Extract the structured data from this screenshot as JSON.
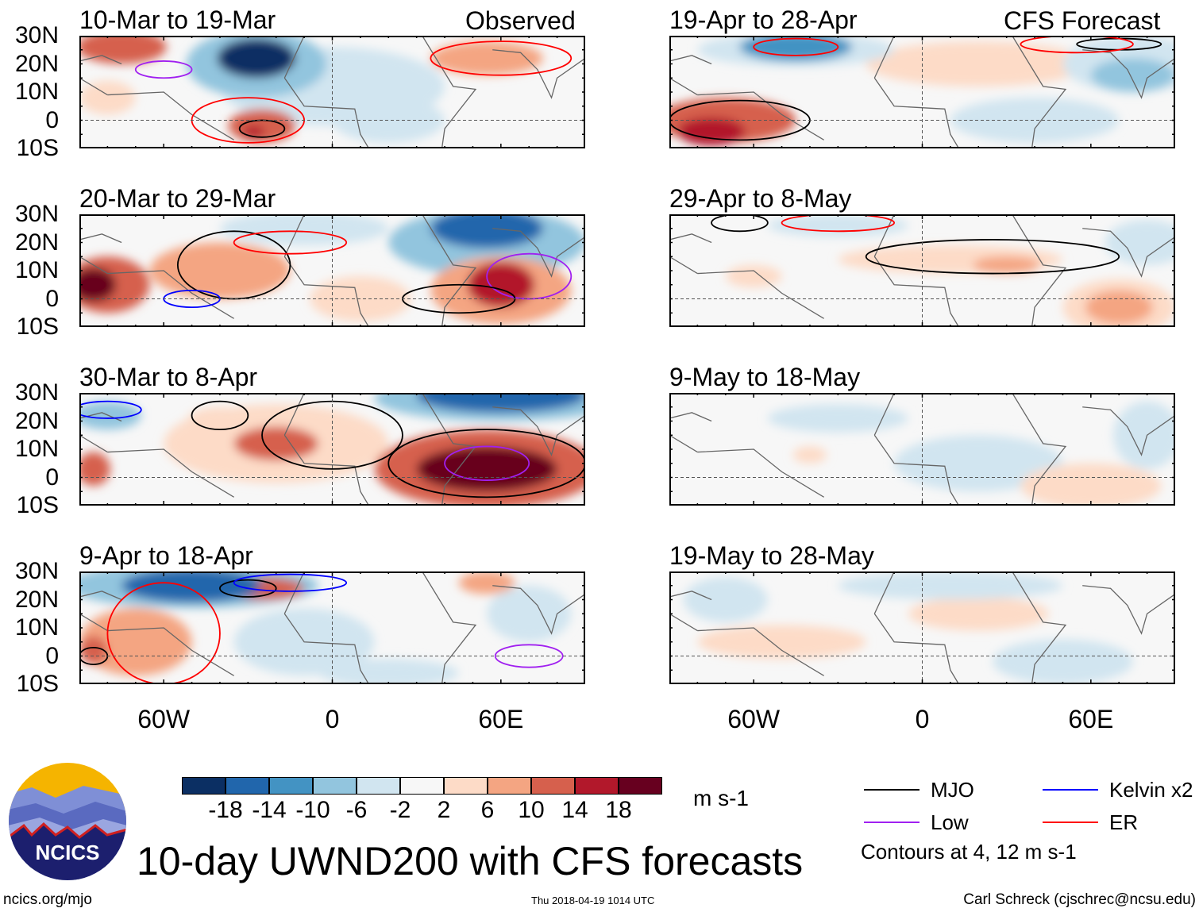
{
  "header": {
    "left_label": "Observed",
    "right_label": "CFS Forecast"
  },
  "lat_labels": [
    "30N",
    "20N",
    "10N",
    "0",
    "10S"
  ],
  "lon_labels": [
    "60W",
    "0",
    "60E"
  ],
  "colorbar": {
    "labels": [
      "-18",
      "-14",
      "-10",
      "-6",
      "-2",
      "2",
      "6",
      "10",
      "14",
      "18"
    ],
    "colors": [
      "#0b2f63",
      "#2166ac",
      "#4393c3",
      "#92c5de",
      "#d1e5f0",
      "#f7f7f7",
      "#fddbc7",
      "#f4a582",
      "#d6604d",
      "#b2182b",
      "#67001f"
    ],
    "units": "m s-1"
  },
  "legend": {
    "items": [
      {
        "label": "MJO",
        "color": "#000000"
      },
      {
        "label": "Kelvin x2",
        "color": "#0000ff"
      },
      {
        "label": "Low",
        "color": "#a020f0"
      },
      {
        "label": "ER",
        "color": "#ff0000"
      }
    ],
    "note": "Contours at 4, 12 m s-1"
  },
  "title": "10-day UWND200 with CFS forecasts",
  "footer": {
    "left": "ncics.org/mjo",
    "center": "Thu 2018-04-19 1014 UTC",
    "right": "Carl Schreck (cjschrec@ncsu.edu)"
  },
  "logo": {
    "text": "NCICS"
  },
  "chart_data": {
    "type": "heatmap",
    "variable": "200-hPa zonal wind anomaly",
    "units": "m s-1",
    "lon_range": [
      -90,
      90
    ],
    "lat_range": [
      -10,
      30
    ],
    "panels": [
      {
        "title": "10-Mar to 19-Mar",
        "group": "Observed",
        "features": [
          [
            -27,
            22,
            14,
            7,
            -20
          ],
          [
            -27,
            20,
            25,
            12,
            -8
          ],
          [
            -75,
            26,
            16,
            6,
            10
          ],
          [
            -25,
            -2,
            12,
            6,
            10
          ],
          [
            -28,
            -4,
            4,
            2,
            16
          ],
          [
            0,
            12,
            40,
            14,
            -5
          ],
          [
            55,
            22,
            20,
            6,
            6
          ],
          [
            -80,
            8,
            10,
            6,
            5
          ],
          [
            20,
            0,
            20,
            8,
            -3
          ]
        ],
        "contours": [
          [
            "MJO",
            -25,
            -3,
            8,
            3
          ],
          [
            "ER",
            -30,
            0,
            20,
            8
          ],
          [
            "Low",
            -60,
            18,
            10,
            3
          ],
          [
            "ER",
            60,
            22,
            25,
            6
          ]
        ]
      },
      {
        "title": "20-Mar to 29-Mar",
        "group": "Observed",
        "features": [
          [
            55,
            25,
            20,
            7,
            -18
          ],
          [
            55,
            20,
            35,
            12,
            -8
          ],
          [
            -85,
            5,
            8,
            6,
            18
          ],
          [
            -80,
            5,
            15,
            10,
            10
          ],
          [
            -40,
            10,
            25,
            10,
            6
          ],
          [
            60,
            5,
            12,
            8,
            14
          ],
          [
            60,
            3,
            25,
            12,
            8
          ],
          [
            10,
            0,
            18,
            8,
            5
          ],
          [
            -10,
            25,
            30,
            6,
            -5
          ]
        ],
        "contours": [
          [
            "MJO",
            -35,
            12,
            20,
            12
          ],
          [
            "Kelvin x2",
            -50,
            0,
            10,
            3
          ],
          [
            "ER",
            -15,
            20,
            20,
            4
          ],
          [
            "Low",
            70,
            8,
            15,
            8
          ],
          [
            "MJO",
            45,
            0,
            20,
            5
          ]
        ]
      },
      {
        "title": "30-Mar to 8-Apr",
        "group": "Observed",
        "features": [
          [
            55,
            3,
            25,
            8,
            20
          ],
          [
            55,
            3,
            40,
            14,
            12
          ],
          [
            60,
            29,
            30,
            6,
            -18
          ],
          [
            60,
            28,
            45,
            8,
            -8
          ],
          [
            -20,
            12,
            15,
            6,
            10
          ],
          [
            -20,
            12,
            40,
            14,
            5
          ],
          [
            -80,
            22,
            12,
            5,
            -8
          ],
          [
            -85,
            3,
            6,
            6,
            10
          ],
          [
            -40,
            20,
            12,
            5,
            5
          ]
        ],
        "contours": [
          [
            "MJO",
            -40,
            22,
            10,
            5
          ],
          [
            "MJO",
            0,
            15,
            25,
            12
          ],
          [
            "MJO",
            55,
            5,
            35,
            12
          ],
          [
            "Low",
            55,
            5,
            15,
            6
          ],
          [
            "Kelvin x2",
            -80,
            24,
            12,
            3
          ]
        ]
      },
      {
        "title": "9-Apr to 18-Apr",
        "group": "Observed",
        "features": [
          [
            -50,
            25,
            25,
            6,
            -16
          ],
          [
            -50,
            25,
            45,
            8,
            -8
          ],
          [
            -25,
            24,
            15,
            4,
            10
          ],
          [
            -70,
            5,
            20,
            12,
            6
          ],
          [
            -85,
            2,
            5,
            5,
            12
          ],
          [
            -10,
            5,
            25,
            12,
            -6
          ],
          [
            20,
            -6,
            25,
            5,
            -5
          ],
          [
            55,
            26,
            10,
            4,
            8
          ],
          [
            70,
            15,
            15,
            10,
            -4
          ]
        ],
        "contours": [
          [
            "MJO",
            -30,
            24,
            10,
            3
          ],
          [
            "Kelvin x2",
            -15,
            26,
            20,
            3
          ],
          [
            "ER",
            -60,
            8,
            20,
            18
          ],
          [
            "Low",
            70,
            0,
            12,
            4
          ],
          [
            "MJO",
            -85,
            0,
            5,
            3
          ]
        ]
      },
      {
        "title": "19-Apr to 28-Apr",
        "group": "CFS Forecast",
        "features": [
          [
            -45,
            26,
            20,
            5,
            -14
          ],
          [
            -45,
            25,
            35,
            6,
            -6
          ],
          [
            -70,
            0,
            25,
            8,
            10
          ],
          [
            -75,
            -4,
            12,
            5,
            14
          ],
          [
            75,
            16,
            15,
            6,
            -8
          ],
          [
            20,
            20,
            40,
            8,
            4
          ],
          [
            75,
            20,
            25,
            10,
            -5
          ],
          [
            40,
            0,
            30,
            8,
            -3
          ]
        ],
        "contours": [
          [
            "MJO",
            -65,
            0,
            25,
            7
          ],
          [
            "ER",
            -45,
            26,
            15,
            3
          ],
          [
            "MJO",
            70,
            27,
            15,
            2
          ],
          [
            "ER",
            55,
            27,
            20,
            3
          ]
        ]
      },
      {
        "title": "29-Apr to 8-May",
        "group": "CFS Forecast",
        "features": [
          [
            10,
            14,
            40,
            5,
            5
          ],
          [
            30,
            12,
            12,
            3,
            8
          ],
          [
            -30,
            26,
            25,
            4,
            -6
          ],
          [
            70,
            -3,
            12,
            6,
            6
          ],
          [
            70,
            -3,
            20,
            10,
            3
          ],
          [
            -60,
            8,
            10,
            4,
            3
          ],
          [
            80,
            20,
            15,
            8,
            -4
          ]
        ],
        "contours": [
          [
            "MJO",
            25,
            15,
            45,
            6
          ],
          [
            "MJO",
            -65,
            27,
            10,
            3
          ],
          [
            "ER",
            -30,
            27,
            20,
            3
          ]
        ]
      },
      {
        "title": "9-May to 18-May",
        "group": "CFS Forecast",
        "features": [
          [
            -30,
            21,
            25,
            5,
            -4
          ],
          [
            20,
            5,
            30,
            10,
            -3
          ],
          [
            60,
            -3,
            25,
            8,
            3
          ],
          [
            -40,
            8,
            6,
            3,
            3
          ],
          [
            80,
            15,
            12,
            12,
            -3
          ]
        ],
        "contours": []
      },
      {
        "title": "19-May to 28-May",
        "group": "CFS Forecast",
        "features": [
          [
            -50,
            5,
            30,
            6,
            3
          ],
          [
            20,
            15,
            25,
            6,
            3
          ],
          [
            10,
            25,
            40,
            5,
            -3
          ],
          [
            -70,
            20,
            15,
            8,
            -3
          ],
          [
            50,
            -2,
            25,
            8,
            -3
          ]
        ],
        "contours": []
      }
    ]
  }
}
